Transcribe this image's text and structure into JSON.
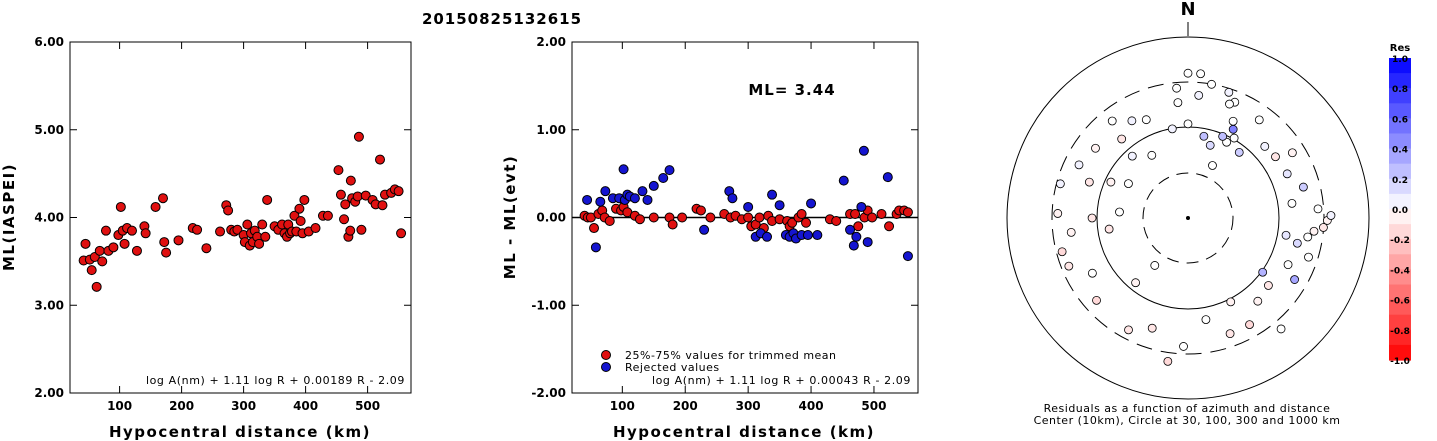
{
  "title": "20150825132615",
  "chart_data": [
    {
      "type": "scatter",
      "ylabel": "ML(IASPEI)",
      "xlabel": "Hypocentral distance (km)",
      "xlim": [
        20,
        570
      ],
      "ylim": [
        2.0,
        6.0
      ],
      "xticks": [
        100,
        200,
        300,
        400,
        500
      ],
      "yticks": [
        "2.00",
        "3.00",
        "4.00",
        "5.00",
        "6.00"
      ],
      "formula": "log A(nm) + 1.11 log R + 0.00189 R - 2.09",
      "series": [
        {
          "color": "#e01010",
          "points": [
            [
              42,
              3.51
            ],
            [
              45,
              3.7
            ],
            [
              52,
              3.52
            ],
            [
              55,
              3.4
            ],
            [
              60,
              3.55
            ],
            [
              63,
              3.21
            ],
            [
              68,
              3.62
            ],
            [
              72,
              3.5
            ],
            [
              78,
              3.85
            ],
            [
              82,
              3.62
            ],
            [
              90,
              3.66
            ],
            [
              98,
              3.8
            ],
            [
              102,
              4.12
            ],
            [
              105,
              3.85
            ],
            [
              108,
              3.7
            ],
            [
              112,
              3.88
            ],
            [
              120,
              3.85
            ],
            [
              128,
              3.62
            ],
            [
              140,
              3.9
            ],
            [
              142,
              3.82
            ],
            [
              158,
              4.12
            ],
            [
              170,
              4.22
            ],
            [
              172,
              3.72
            ],
            [
              175,
              3.6
            ],
            [
              195,
              3.74
            ],
            [
              218,
              3.88
            ],
            [
              225,
              3.86
            ],
            [
              240,
              3.65
            ],
            [
              262,
              3.84
            ],
            [
              272,
              4.14
            ],
            [
              275,
              4.08
            ],
            [
              280,
              3.86
            ],
            [
              285,
              3.84
            ],
            [
              290,
              3.86
            ],
            [
              300,
              3.8
            ],
            [
              302,
              3.72
            ],
            [
              306,
              3.92
            ],
            [
              310,
              3.68
            ],
            [
              312,
              3.82
            ],
            [
              315,
              3.72
            ],
            [
              318,
              3.85
            ],
            [
              322,
              3.78
            ],
            [
              325,
              3.7
            ],
            [
              330,
              3.92
            ],
            [
              335,
              3.78
            ],
            [
              338,
              4.2
            ],
            [
              350,
              3.9
            ],
            [
              356,
              3.86
            ],
            [
              362,
              3.92
            ],
            [
              366,
              3.82
            ],
            [
              370,
              3.78
            ],
            [
              372,
              3.92
            ],
            [
              375,
              3.82
            ],
            [
              378,
              3.84
            ],
            [
              382,
              4.02
            ],
            [
              385,
              3.84
            ],
            [
              390,
              4.1
            ],
            [
              392,
              3.96
            ],
            [
              395,
              3.82
            ],
            [
              398,
              4.2
            ],
            [
              405,
              3.84
            ],
            [
              416,
              3.88
            ],
            [
              428,
              4.02
            ],
            [
              436,
              4.02
            ],
            [
              453,
              4.54
            ],
            [
              457,
              4.26
            ],
            [
              462,
              3.98
            ],
            [
              464,
              4.15
            ],
            [
              469,
              3.78
            ],
            [
              472,
              3.85
            ],
            [
              473,
              4.42
            ],
            [
              475,
              4.22
            ],
            [
              480,
              4.18
            ],
            [
              484,
              4.24
            ],
            [
              486,
              4.92
            ],
            [
              490,
              3.86
            ],
            [
              497,
              4.25
            ],
            [
              508,
              4.2
            ],
            [
              513,
              4.15
            ],
            [
              520,
              4.66
            ],
            [
              524,
              4.14
            ],
            [
              528,
              4.26
            ],
            [
              538,
              4.28
            ],
            [
              544,
              4.32
            ],
            [
              550,
              4.3
            ],
            [
              554,
              3.82
            ]
          ]
        }
      ]
    },
    {
      "type": "scatter",
      "ylabel": "ML - ML(evt)",
      "xlabel": "Hypocentral distance (km)",
      "xlim": [
        20,
        570
      ],
      "ylim": [
        -2.0,
        2.0
      ],
      "xticks": [
        100,
        200,
        300,
        400,
        500
      ],
      "yticks": [
        "-2.00",
        "-1.00",
        "0.00",
        "1.00",
        "2.00"
      ],
      "reference_line": 0.0,
      "annotation": "ML= 3.44",
      "formula": "log A(nm) + 1.11 log R + 0.00043 R - 2.09",
      "series": [
        {
          "name": "25%-75% values for trimmed mean",
          "color": "#e01010",
          "points": [
            [
              40,
              0.02
            ],
            [
              45,
              0.0
            ],
            [
              50,
              0.0
            ],
            [
              55,
              -0.12
            ],
            [
              62,
              0.04
            ],
            [
              68,
              0.08
            ],
            [
              72,
              0.0
            ],
            [
              80,
              -0.04
            ],
            [
              90,
              0.1
            ],
            [
              98,
              0.08
            ],
            [
              102,
              0.12
            ],
            [
              108,
              0.06
            ],
            [
              120,
              0.02
            ],
            [
              128,
              -0.02
            ],
            [
              150,
              0.0
            ],
            [
              175,
              0.0
            ],
            [
              180,
              -0.08
            ],
            [
              195,
              0.0
            ],
            [
              218,
              0.1
            ],
            [
              225,
              0.08
            ],
            [
              240,
              0.0
            ],
            [
              262,
              0.04
            ],
            [
              272,
              0.0
            ],
            [
              280,
              0.02
            ],
            [
              290,
              -0.02
            ],
            [
              300,
              0.0
            ],
            [
              305,
              -0.1
            ],
            [
              312,
              -0.08
            ],
            [
              318,
              0.0
            ],
            [
              325,
              -0.12
            ],
            [
              332,
              0.02
            ],
            [
              338,
              -0.04
            ],
            [
              350,
              -0.02
            ],
            [
              362,
              -0.04
            ],
            [
              366,
              -0.1
            ],
            [
              370,
              -0.06
            ],
            [
              380,
              0.0
            ],
            [
              385,
              0.04
            ],
            [
              392,
              -0.06
            ],
            [
              430,
              -0.02
            ],
            [
              440,
              -0.04
            ],
            [
              462,
              0.04
            ],
            [
              470,
              0.04
            ],
            [
              475,
              -0.1
            ],
            [
              485,
              0.0
            ],
            [
              490,
              0.08
            ],
            [
              497,
              0.0
            ],
            [
              512,
              0.04
            ],
            [
              524,
              -0.1
            ],
            [
              536,
              0.04
            ],
            [
              540,
              0.08
            ],
            [
              548,
              0.08
            ],
            [
              554,
              0.06
            ]
          ]
        },
        {
          "name": "Rejected values",
          "color": "#1515d0",
          "points": [
            [
              44,
              0.2
            ],
            [
              58,
              -0.34
            ],
            [
              65,
              0.18
            ],
            [
              73,
              0.3
            ],
            [
              85,
              0.22
            ],
            [
              95,
              0.22
            ],
            [
              102,
              0.55
            ],
            [
              104,
              0.2
            ],
            [
              108,
              0.26
            ],
            [
              112,
              0.24
            ],
            [
              120,
              0.22
            ],
            [
              132,
              0.3
            ],
            [
              140,
              0.2
            ],
            [
              150,
              0.36
            ],
            [
              165,
              0.45
            ],
            [
              175,
              0.54
            ],
            [
              230,
              -0.14
            ],
            [
              270,
              0.3
            ],
            [
              275,
              0.22
            ],
            [
              300,
              0.12
            ],
            [
              312,
              -0.22
            ],
            [
              320,
              -0.18
            ],
            [
              330,
              -0.22
            ],
            [
              338,
              0.26
            ],
            [
              350,
              0.14
            ],
            [
              360,
              -0.2
            ],
            [
              366,
              -0.22
            ],
            [
              372,
              -0.18
            ],
            [
              376,
              -0.24
            ],
            [
              385,
              -0.2
            ],
            [
              395,
              -0.2
            ],
            [
              400,
              0.16
            ],
            [
              410,
              -0.2
            ],
            [
              452,
              0.42
            ],
            [
              462,
              -0.14
            ],
            [
              468,
              -0.32
            ],
            [
              472,
              -0.22
            ],
            [
              480,
              0.12
            ],
            [
              484,
              0.76
            ],
            [
              490,
              -0.28
            ],
            [
              522,
              0.46
            ],
            [
              554,
              -0.44
            ]
          ]
        }
      ]
    },
    {
      "type": "polar",
      "north_label": "N",
      "caption_line1": "Residuals as a function of azimuth and distance",
      "caption_line2": "Center (10km), Circle at 30, 100, 300 and 1000 km",
      "colorbar_title": "Res",
      "colorbar_ticks": [
        "1.0",
        "0.8",
        "0.6",
        "0.4",
        "0.2",
        "0.0",
        "-0.2",
        "-0.4",
        "-0.6",
        "-0.8",
        "-1.0"
      ],
      "stations": [
        [
          25,
          32,
          0.0
        ],
        [
          27,
          47,
          0.0
        ],
        [
          22,
          69,
          0.0
        ],
        [
          5,
          68,
          0.05
        ],
        [
          355,
          64,
          0.0
        ],
        [
          337,
          59,
          0.0
        ],
        [
          330,
          62,
          0.05
        ],
        [
          322,
          68,
          0.0
        ],
        [
          320,
          57,
          -0.1
        ],
        [
          307,
          64,
          -0.05
        ],
        [
          295,
          47,
          -0.05
        ],
        [
          296,
          67,
          0.05
        ],
        [
          290,
          58,
          -0.1
        ],
        [
          285,
          73,
          0.05
        ],
        [
          272,
          72,
          -0.05
        ],
        [
          270,
          53,
          -0.1
        ],
        [
          262,
          44,
          -0.1
        ],
        [
          263,
          65,
          -0.05
        ],
        [
          255,
          72,
          -0.15
        ],
        [
          248,
          71,
          -0.1
        ],
        [
          240,
          61,
          0.0
        ],
        [
          228,
          68,
          -0.15
        ],
        [
          219,
          46,
          -0.05
        ],
        [
          215,
          32,
          0.0
        ],
        [
          208,
          70,
          -0.1
        ],
        [
          198,
          64,
          -0.1
        ],
        [
          188,
          80,
          -0.15
        ],
        [
          182,
          71,
          0.0
        ],
        [
          170,
          57,
          0.0
        ],
        [
          160,
          68,
          -0.1
        ],
        [
          153,
          52,
          -0.05
        ],
        [
          150,
          68,
          -0.15
        ],
        [
          140,
          60,
          -0.05
        ],
        [
          140,
          80,
          0.0
        ],
        [
          130,
          58,
          -0.1
        ],
        [
          126,
          51,
          0.3
        ],
        [
          120,
          68,
          0.35
        ],
        [
          115,
          61,
          0.0
        ],
        [
          108,
          70,
          0.0
        ],
        [
          103,
          62,
          0.15
        ],
        [
          99,
          67,
          0.0
        ],
        [
          96,
          70,
          -0.05
        ],
        [
          94,
          75,
          -0.1
        ],
        [
          91,
          77,
          -0.05
        ],
        [
          89,
          79,
          0.05
        ],
        [
          86,
          72,
          0.0
        ],
        [
          82,
          58,
          0.0
        ],
        [
          75,
          66,
          0.2
        ],
        [
          66,
          60,
          0.1
        ],
        [
          58,
          68,
          -0.05
        ],
        [
          55,
          59,
          -0.1
        ],
        [
          47,
          58,
          0.05
        ],
        [
          38,
          46,
          0.2
        ],
        [
          36,
          67,
          0.0
        ],
        [
          30,
          51,
          0.0
        ],
        [
          25,
          59,
          0.0
        ],
        [
          20,
          67,
          0.0
        ],
        [
          18,
          73,
          0.05
        ],
        [
          10,
          75,
          0.0
        ],
        [
          5,
          80,
          0.0
        ],
        [
          0,
          80,
          0.0
        ],
        [
          355,
          72,
          0.0
        ],
        [
          11,
          46,
          0.25
        ],
        [
          17,
          42,
          0.15
        ],
        [
          23,
          49,
          0.25
        ],
        [
          27,
          55,
          0.5
        ],
        [
          0,
          52,
          0.0
        ],
        [
          350,
          50,
          0.05
        ],
        [
          318,
          46,
          0.05
        ],
        [
          300,
          38,
          0.0
        ],
        [
          275,
          38,
          0.0
        ],
        [
          330,
          40,
          0.0
        ],
        [
          100,
          55,
          0.1
        ]
      ]
    }
  ]
}
